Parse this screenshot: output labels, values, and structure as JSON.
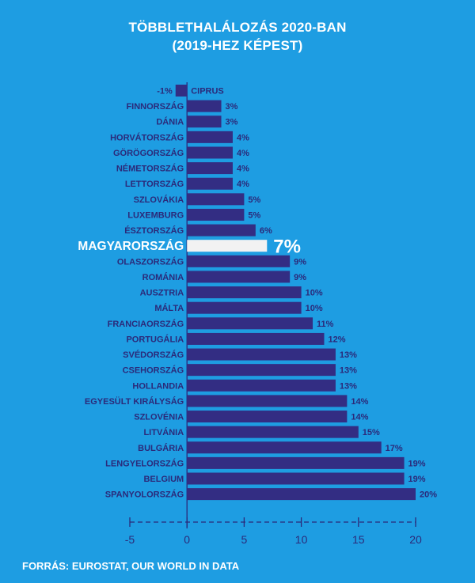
{
  "chart_data": {
    "type": "bar",
    "orientation": "horizontal",
    "title": "TÖBBLETHALÁLOZÁS 2020-BAN",
    "subtitle": "(2019-HEZ KÉPEST)",
    "categories": [
      "CIPRUS",
      "FINNORSZÁG",
      "DÁNIA",
      "HORVÁTORSZÁG",
      "GÖRÖGORSZÁG",
      "NÉMETORSZÁG",
      "LETTORSZÁG",
      "SZLOVÁKIA",
      "LUXEMBURG",
      "ÉSZTORSZÁG",
      "MAGYARORSZÁG",
      "OLASZORSZÁG",
      "ROMÁNIA",
      "AUSZTRIA",
      "MÁLTA",
      "FRANCIAORSZÁG",
      "PORTUGÁLIA",
      "SVÉDORSZÁG",
      "CSEHORSZÁG",
      "HOLLANDIA",
      "EGYESÜLT KIRÁLYSÁG",
      "SZLOVÉNIA",
      "LITVÁNIA",
      "BULGÁRIA",
      "LENGYELORSZÁG",
      "BELGIUM",
      "SPANYOLORSZÁG"
    ],
    "values": [
      -1,
      3,
      3,
      4,
      4,
      4,
      4,
      5,
      5,
      6,
      7,
      9,
      9,
      10,
      10,
      11,
      12,
      13,
      13,
      13,
      14,
      14,
      15,
      17,
      19,
      19,
      20
    ],
    "value_labels": [
      "-1%",
      "3%",
      "3%",
      "4%",
      "4%",
      "4%",
      "4%",
      "5%",
      "5%",
      "6%",
      "7%",
      "9%",
      "9%",
      "10%",
      "10%",
      "11%",
      "12%",
      "13%",
      "13%",
      "13%",
      "14%",
      "14%",
      "15%",
      "17%",
      "19%",
      "19%",
      "20%"
    ],
    "highlight": "MAGYARORSZÁG",
    "xlim": [
      -5,
      20
    ],
    "x_ticks": [
      -5,
      0,
      5,
      10,
      15,
      20
    ],
    "x_tick_labels": [
      "-5",
      "0",
      "5",
      "10",
      "15",
      "20"
    ],
    "grid": false,
    "colors": {
      "background": "#1e9de2",
      "bar": "#332d83",
      "highlight_bar": "#f2f2f2",
      "text": "#ffffff",
      "label_text": "#2b2a7a",
      "axis": "#2b2a7a"
    }
  },
  "source": "FORRÁS: EUROSTAT, OUR WORLD IN DATA"
}
